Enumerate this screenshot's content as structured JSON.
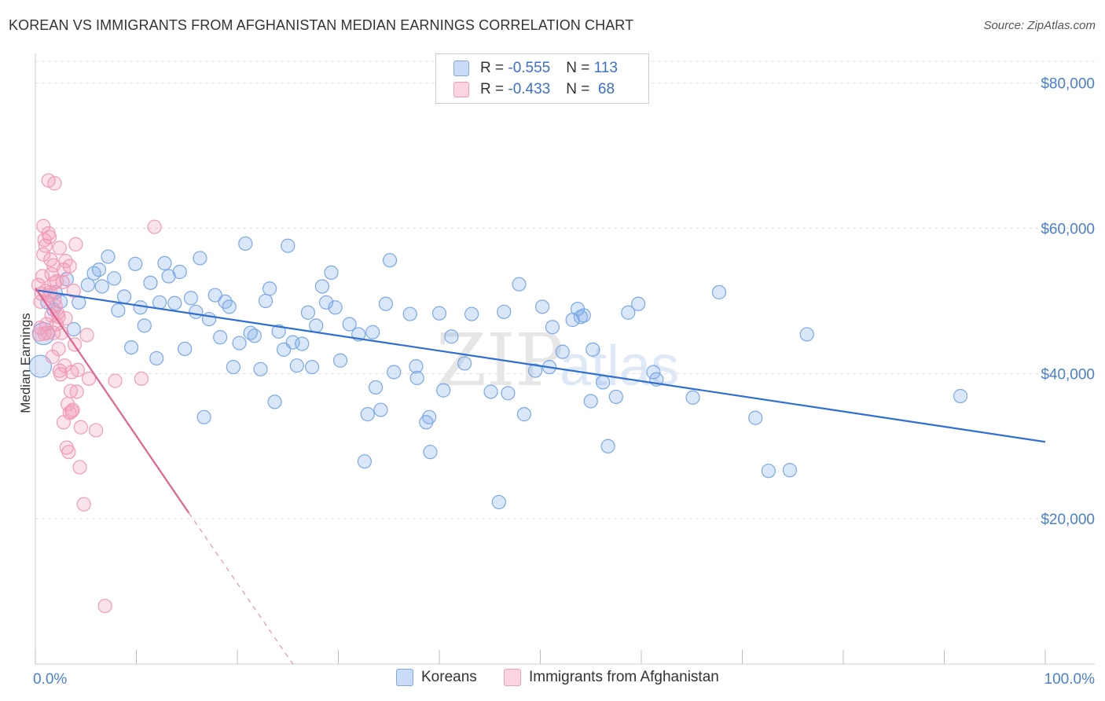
{
  "header": {
    "title": "KOREAN VS IMMIGRANTS FROM AFGHANISTAN MEDIAN EARNINGS CORRELATION CHART",
    "source": "Source: ZipAtlas.com"
  },
  "legend": {
    "rows": [
      {
        "r_label": "R = ",
        "r_value": "-0.555",
        "n_label": "N = ",
        "n_value": "113",
        "color": "#7aa8e8"
      },
      {
        "r_label": "R = ",
        "r_value": "-0.433",
        "n_label": "N = ",
        "n_value": " 68",
        "color": "#f29ab8"
      }
    ]
  },
  "bottom_legend": {
    "items": [
      {
        "label": "Koreans",
        "color": "#7aa8e8"
      },
      {
        "label": "Immigrants from Afghanistan",
        "color": "#f29ab8"
      }
    ]
  },
  "watermark": {
    "zip": "ZIP",
    "atlas": "atlas"
  },
  "chart_data": {
    "type": "scatter",
    "title": "KOREAN VS IMMIGRANTS FROM AFGHANISTAN MEDIAN EARNINGS CORRELATION CHART",
    "xlabel": "",
    "ylabel": "Median Earnings",
    "xlim": [
      0,
      100
    ],
    "ylim": [
      0,
      83000
    ],
    "x_tick_labels": [
      "0.0%",
      "100.0%"
    ],
    "y_ticks": [
      20000,
      40000,
      60000,
      80000
    ],
    "y_tick_labels": [
      "$20,000",
      "$40,000",
      "$60,000",
      "$80,000"
    ],
    "grid": true,
    "series": [
      {
        "name": "Koreans",
        "color": "#7aa8e8",
        "trend": {
          "x": [
            0,
            100
          ],
          "y": [
            51500,
            30600
          ],
          "style": "solid",
          "color": "#2f6fd0"
        },
        "points": [
          [
            0.5,
            41000
          ],
          [
            0.8,
            45500
          ],
          [
            1.2,
            49800
          ],
          [
            1.8,
            48800
          ],
          [
            2.0,
            51200
          ],
          [
            2.5,
            49900
          ],
          [
            3.1,
            53000
          ],
          [
            3.8,
            46100
          ],
          [
            4.3,
            49800
          ],
          [
            5.2,
            52200
          ],
          [
            5.8,
            53800
          ],
          [
            6.3,
            54300
          ],
          [
            6.6,
            52000
          ],
          [
            7.2,
            56100
          ],
          [
            7.8,
            53100
          ],
          [
            8.2,
            48700
          ],
          [
            8.8,
            50600
          ],
          [
            9.5,
            43600
          ],
          [
            9.9,
            55100
          ],
          [
            10.4,
            49100
          ],
          [
            10.8,
            46600
          ],
          [
            11.4,
            52500
          ],
          [
            12.0,
            42100
          ],
          [
            12.3,
            49800
          ],
          [
            12.8,
            55200
          ],
          [
            13.2,
            53400
          ],
          [
            13.8,
            49700
          ],
          [
            14.3,
            54000
          ],
          [
            14.8,
            43400
          ],
          [
            15.4,
            50400
          ],
          [
            15.9,
            48500
          ],
          [
            16.3,
            55900
          ],
          [
            16.7,
            34000
          ],
          [
            17.2,
            47500
          ],
          [
            17.8,
            50800
          ],
          [
            18.3,
            45000
          ],
          [
            18.8,
            49900
          ],
          [
            19.2,
            49200
          ],
          [
            19.6,
            40900
          ],
          [
            20.2,
            44200
          ],
          [
            20.8,
            57900
          ],
          [
            21.3,
            45600
          ],
          [
            21.7,
            45200
          ],
          [
            22.3,
            40600
          ],
          [
            22.8,
            50000
          ],
          [
            23.2,
            51700
          ],
          [
            23.7,
            36100
          ],
          [
            24.1,
            45800
          ],
          [
            24.6,
            43300
          ],
          [
            25.0,
            57600
          ],
          [
            25.5,
            44300
          ],
          [
            25.9,
            41100
          ],
          [
            26.4,
            44100
          ],
          [
            27.0,
            48400
          ],
          [
            27.4,
            40900
          ],
          [
            27.8,
            46600
          ],
          [
            28.4,
            52000
          ],
          [
            28.8,
            49800
          ],
          [
            29.3,
            53900
          ],
          [
            29.7,
            49100
          ],
          [
            30.2,
            41800
          ],
          [
            31.1,
            46800
          ],
          [
            32.0,
            45400
          ],
          [
            32.6,
            27900
          ],
          [
            32.9,
            34400
          ],
          [
            33.4,
            45700
          ],
          [
            33.7,
            38100
          ],
          [
            34.2,
            35000
          ],
          [
            34.7,
            49600
          ],
          [
            35.1,
            55600
          ],
          [
            35.5,
            40200
          ],
          [
            37.1,
            48200
          ],
          [
            37.7,
            41000
          ],
          [
            37.8,
            39400
          ],
          [
            38.7,
            33300
          ],
          [
            39.0,
            34000
          ],
          [
            39.1,
            29200
          ],
          [
            40.0,
            48300
          ],
          [
            40.4,
            37700
          ],
          [
            41.2,
            45100
          ],
          [
            42.5,
            41400
          ],
          [
            43.2,
            48200
          ],
          [
            45.1,
            37500
          ],
          [
            45.9,
            22300
          ],
          [
            46.4,
            48500
          ],
          [
            46.8,
            37300
          ],
          [
            47.9,
            52300
          ],
          [
            48.4,
            34400
          ],
          [
            49.5,
            40400
          ],
          [
            50.2,
            49200
          ],
          [
            50.9,
            40900
          ],
          [
            51.2,
            46400
          ],
          [
            52.2,
            43000
          ],
          [
            53.2,
            47400
          ],
          [
            53.7,
            48900
          ],
          [
            54.0,
            47800
          ],
          [
            54.3,
            48000
          ],
          [
            55.0,
            36200
          ],
          [
            55.2,
            43300
          ],
          [
            56.2,
            38800
          ],
          [
            56.7,
            30000
          ],
          [
            57.5,
            36800
          ],
          [
            58.7,
            48400
          ],
          [
            59.7,
            49600
          ],
          [
            61.2,
            40200
          ],
          [
            61.5,
            39200
          ],
          [
            65.1,
            36700
          ],
          [
            67.7,
            51200
          ],
          [
            71.3,
            33900
          ],
          [
            72.6,
            26600
          ],
          [
            74.7,
            26700
          ],
          [
            76.4,
            45400
          ],
          [
            91.6,
            36900
          ]
        ]
      },
      {
        "name": "Immigrants from Afghanistan",
        "color": "#f29ab8",
        "trend": {
          "x": [
            0,
            15.2
          ],
          "y": [
            51800,
            20800
          ],
          "style": "solid",
          "color": "#e0638f",
          "extension": {
            "x": [
              15.2,
              25.5
            ],
            "y": [
              20800,
              -500
            ],
            "style": "dashed"
          }
        },
        "points": [
          [
            0.3,
            52200
          ],
          [
            0.4,
            45400
          ],
          [
            0.5,
            46300
          ],
          [
            0.5,
            49900
          ],
          [
            0.6,
            51000
          ],
          [
            0.7,
            53400
          ],
          [
            0.8,
            56400
          ],
          [
            0.8,
            60300
          ],
          [
            0.9,
            58400
          ],
          [
            1.0,
            57600
          ],
          [
            1.0,
            51400
          ],
          [
            1.1,
            46800
          ],
          [
            1.2,
            45600
          ],
          [
            1.3,
            66600
          ],
          [
            1.3,
            59300
          ],
          [
            1.4,
            58800
          ],
          [
            1.4,
            50800
          ],
          [
            1.5,
            55700
          ],
          [
            1.5,
            51200
          ],
          [
            1.6,
            53700
          ],
          [
            1.6,
            48000
          ],
          [
            1.7,
            42300
          ],
          [
            1.8,
            45600
          ],
          [
            1.8,
            54900
          ],
          [
            1.9,
            50200
          ],
          [
            1.9,
            66200
          ],
          [
            2.0,
            49300
          ],
          [
            2.1,
            52700
          ],
          [
            2.1,
            46800
          ],
          [
            2.2,
            48300
          ],
          [
            2.3,
            43400
          ],
          [
            2.4,
            40400
          ],
          [
            2.4,
            57300
          ],
          [
            2.5,
            39900
          ],
          [
            2.6,
            45600
          ],
          [
            2.7,
            52600
          ],
          [
            2.8,
            54300
          ],
          [
            2.8,
            33300
          ],
          [
            2.9,
            41100
          ],
          [
            3.0,
            47600
          ],
          [
            3.1,
            29800
          ],
          [
            3.2,
            35800
          ],
          [
            3.3,
            29200
          ],
          [
            3.4,
            34600
          ],
          [
            3.4,
            54800
          ],
          [
            3.5,
            37600
          ],
          [
            3.6,
            34800
          ],
          [
            3.7,
            35000
          ],
          [
            3.8,
            51400
          ],
          [
            3.9,
            44000
          ],
          [
            4.0,
            57800
          ],
          [
            4.1,
            37500
          ],
          [
            4.2,
            40500
          ],
          [
            4.4,
            27100
          ],
          [
            4.5,
            32600
          ],
          [
            4.8,
            22000
          ],
          [
            5.1,
            45300
          ],
          [
            5.3,
            39300
          ],
          [
            6.0,
            32200
          ],
          [
            6.9,
            8000
          ],
          [
            7.9,
            39000
          ],
          [
            10.5,
            39300
          ],
          [
            11.8,
            60200
          ],
          [
            3.0,
            55500
          ],
          [
            1.9,
            52500
          ],
          [
            2.3,
            47800
          ],
          [
            3.6,
            40200
          ],
          [
            0.9,
            45500
          ]
        ]
      }
    ]
  }
}
